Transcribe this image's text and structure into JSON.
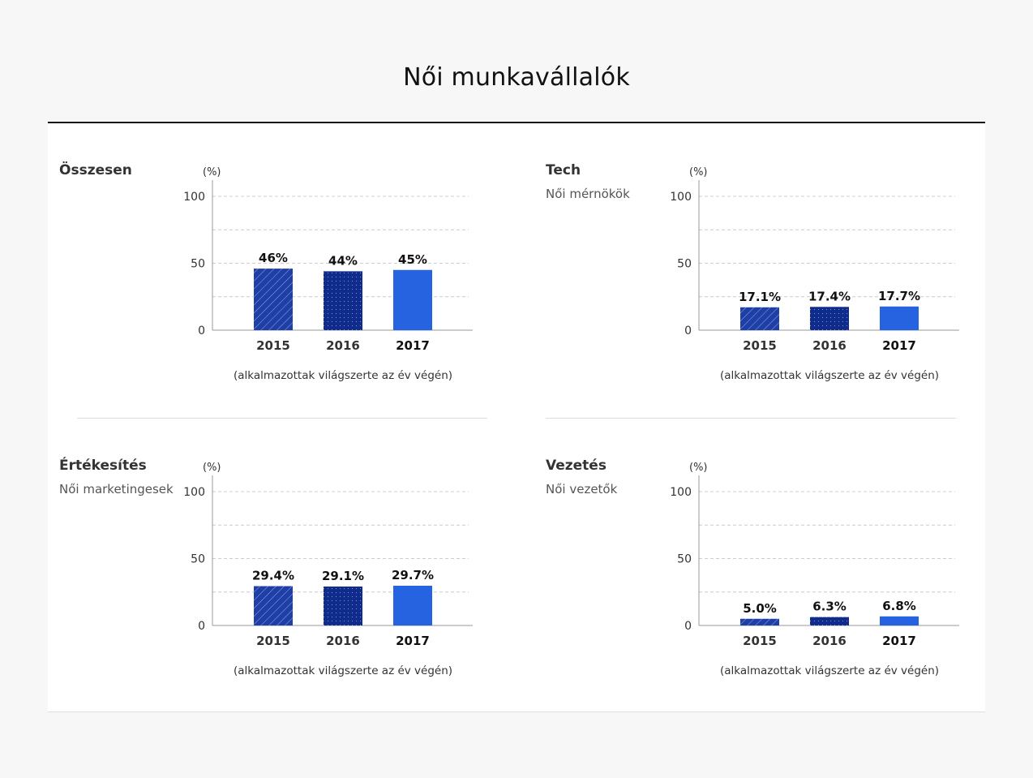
{
  "page": {
    "title": "Női munkavállalók"
  },
  "colors": {
    "bar_2015": "#1e3fa8",
    "bar_2016": "#0f2c8c",
    "bar_2017": "#2563e0",
    "grid": "#cccccc",
    "axis": "#999999"
  },
  "chart_data": [
    {
      "type": "bar",
      "title": "Összesen",
      "subtitle": "",
      "unit_label": "(%)",
      "categories": [
        "2015",
        "2016",
        "2017"
      ],
      "values": [
        46,
        44,
        45
      ],
      "value_labels": [
        "46%",
        "44%",
        "45%"
      ],
      "xlabel": "(alkalmazottak világszerte az év végén)",
      "ylim": [
        0,
        100
      ],
      "y_ticks": [
        0,
        50,
        100
      ],
      "grid": true
    },
    {
      "type": "bar",
      "title": "Tech",
      "subtitle": "Női mérnökök",
      "unit_label": "(%)",
      "categories": [
        "2015",
        "2016",
        "2017"
      ],
      "values": [
        17.1,
        17.4,
        17.7
      ],
      "value_labels": [
        "17.1%",
        "17.4%",
        "17.7%"
      ],
      "xlabel": "(alkalmazottak világszerte az év végén)",
      "ylim": [
        0,
        100
      ],
      "y_ticks": [
        0,
        50,
        100
      ],
      "grid": true
    },
    {
      "type": "bar",
      "title": "Értékesítés",
      "subtitle": "Női marketingesek",
      "unit_label": "(%)",
      "categories": [
        "2015",
        "2016",
        "2017"
      ],
      "values": [
        29.4,
        29.1,
        29.7
      ],
      "value_labels": [
        "29.4%",
        "29.1%",
        "29.7%"
      ],
      "xlabel": "(alkalmazottak világszerte az év végén)",
      "ylim": [
        0,
        100
      ],
      "y_ticks": [
        0,
        50,
        100
      ],
      "grid": true
    },
    {
      "type": "bar",
      "title": "Vezetés",
      "subtitle": "Női vezetők",
      "unit_label": "(%)",
      "categories": [
        "2015",
        "2016",
        "2017"
      ],
      "values": [
        5.0,
        6.3,
        6.8
      ],
      "value_labels": [
        "5.0%",
        "6.3%",
        "6.8%"
      ],
      "xlabel": "(alkalmazottak világszerte az év végén)",
      "ylim": [
        0,
        100
      ],
      "y_ticks": [
        0,
        50,
        100
      ],
      "grid": true
    }
  ]
}
